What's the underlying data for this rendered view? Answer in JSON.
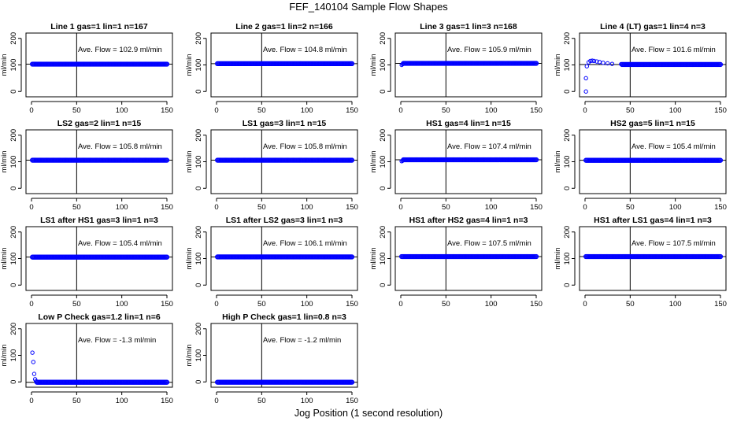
{
  "figure": {
    "title": "FEF_140104  Sample Flow Shapes",
    "xlabel": "Jog Position (1 second resolution)"
  },
  "chart_data": [
    {
      "type": "scatter",
      "title": "Line 1 gas=1 lin=1 n=167",
      "ylabel": "ml/min",
      "annotation": "Ave. Flow =  102.9  ml/min",
      "xlim": [
        0,
        150
      ],
      "ylim": [
        -20,
        220
      ],
      "xticks": [
        0,
        50,
        100,
        150
      ],
      "yticks": [
        0,
        100,
        200
      ],
      "vline_x": 50,
      "hline_y": 102.9,
      "series": {
        "x_start": 1,
        "x_end": 150,
        "level": 102.9,
        "startup": []
      }
    },
    {
      "type": "scatter",
      "title": "Line 2 gas=1 lin=2 n=166",
      "ylabel": "ml/min",
      "annotation": "Ave. Flow =  104.8  ml/min",
      "xlim": [
        0,
        150
      ],
      "ylim": [
        -20,
        220
      ],
      "xticks": [
        0,
        50,
        100,
        150
      ],
      "yticks": [
        0,
        100,
        200
      ],
      "vline_x": 50,
      "hline_y": 104.8,
      "series": {
        "x_start": 1,
        "x_end": 150,
        "level": 104.8,
        "startup": []
      }
    },
    {
      "type": "scatter",
      "title": "Line 3 gas=1 lin=3 n=168",
      "ylabel": "ml/min",
      "annotation": "Ave. Flow =  105.9  ml/min",
      "xlim": [
        0,
        150
      ],
      "ylim": [
        -20,
        220
      ],
      "xticks": [
        0,
        50,
        100,
        150
      ],
      "yticks": [
        0,
        100,
        200
      ],
      "vline_x": 50,
      "hline_y": 105.9,
      "series": {
        "x_start": 1,
        "x_end": 150,
        "level": 105.9,
        "startup": [
          [
            1,
            100
          ],
          [
            2,
            103
          ]
        ]
      }
    },
    {
      "type": "scatter",
      "title": "Line 4 (LT) gas=1 lin=4 n=3",
      "ylabel": "ml/min",
      "annotation": "Ave. Flow =  101.6  ml/min",
      "xlim": [
        0,
        150
      ],
      "ylim": [
        -20,
        220
      ],
      "xticks": [
        0,
        50,
        100,
        150
      ],
      "yticks": [
        0,
        100,
        200
      ],
      "vline_x": 50,
      "hline_y": 101.6,
      "series": {
        "x_start": 1,
        "x_end": 150,
        "level": 101.6,
        "startup": [
          [
            1,
            0
          ],
          [
            1,
            50
          ],
          [
            2,
            95
          ],
          [
            4,
            110
          ],
          [
            6,
            115
          ],
          [
            8,
            116
          ],
          [
            10,
            115
          ],
          [
            13,
            113
          ],
          [
            16,
            111
          ],
          [
            20,
            108
          ],
          [
            25,
            106
          ],
          [
            30,
            104
          ],
          [
            40,
            103
          ]
        ]
      }
    },
    {
      "type": "scatter",
      "title": "LS2 gas=2 lin=1 n=15",
      "ylabel": "ml/min",
      "annotation": "Ave. Flow =  105.8  ml/min",
      "xlim": [
        0,
        150
      ],
      "ylim": [
        -20,
        220
      ],
      "xticks": [
        0,
        50,
        100,
        150
      ],
      "yticks": [
        0,
        100,
        200
      ],
      "vline_x": 50,
      "hline_y": 105.8,
      "series": {
        "x_start": 1,
        "x_end": 150,
        "level": 105.8,
        "startup": []
      }
    },
    {
      "type": "scatter",
      "title": "LS1 gas=3 lin=1 n=15",
      "ylabel": "ml/min",
      "annotation": "Ave. Flow =  105.8  ml/min",
      "xlim": [
        0,
        150
      ],
      "ylim": [
        -20,
        220
      ],
      "xticks": [
        0,
        50,
        100,
        150
      ],
      "yticks": [
        0,
        100,
        200
      ],
      "vline_x": 50,
      "hline_y": 105.8,
      "series": {
        "x_start": 1,
        "x_end": 150,
        "level": 105.8,
        "startup": []
      }
    },
    {
      "type": "scatter",
      "title": "HS1 gas=4 lin=1 n=15",
      "ylabel": "ml/min",
      "annotation": "Ave. Flow =  107.4  ml/min",
      "xlim": [
        0,
        150
      ],
      "ylim": [
        -20,
        220
      ],
      "xticks": [
        0,
        50,
        100,
        150
      ],
      "yticks": [
        0,
        100,
        200
      ],
      "vline_x": 50,
      "hline_y": 107.4,
      "series": {
        "x_start": 1,
        "x_end": 150,
        "level": 107.4,
        "startup": [
          [
            1,
            102
          ],
          [
            2,
            104
          ]
        ]
      }
    },
    {
      "type": "scatter",
      "title": "HS2 gas=5 lin=1 n=15",
      "ylabel": "ml/min",
      "annotation": "Ave. Flow =  105.4  ml/min",
      "xlim": [
        0,
        150
      ],
      "ylim": [
        -20,
        220
      ],
      "xticks": [
        0,
        50,
        100,
        150
      ],
      "yticks": [
        0,
        100,
        200
      ],
      "vline_x": 50,
      "hline_y": 105.4,
      "series": {
        "x_start": 1,
        "x_end": 150,
        "level": 105.4,
        "startup": []
      }
    },
    {
      "type": "scatter",
      "title": "LS1 after HS1 gas=3 lin=1 n=3",
      "ylabel": "ml/min",
      "annotation": "Ave. Flow =  105.4  ml/min",
      "xlim": [
        0,
        150
      ],
      "ylim": [
        -20,
        220
      ],
      "xticks": [
        0,
        50,
        100,
        150
      ],
      "yticks": [
        0,
        100,
        200
      ],
      "vline_x": 50,
      "hline_y": 105.4,
      "series": {
        "x_start": 1,
        "x_end": 150,
        "level": 105.4,
        "startup": []
      }
    },
    {
      "type": "scatter",
      "title": "LS1 after LS2 gas=3 lin=1 n=3",
      "ylabel": "ml/min",
      "annotation": "Ave. Flow =  106.1  ml/min",
      "xlim": [
        0,
        150
      ],
      "ylim": [
        -20,
        220
      ],
      "xticks": [
        0,
        50,
        100,
        150
      ],
      "yticks": [
        0,
        100,
        200
      ],
      "vline_x": 50,
      "hline_y": 106.1,
      "series": {
        "x_start": 1,
        "x_end": 150,
        "level": 106.1,
        "startup": []
      }
    },
    {
      "type": "scatter",
      "title": "HS1 after HS2 gas=4 lin=1 n=3",
      "ylabel": "ml/min",
      "annotation": "Ave. Flow =  107.5  ml/min",
      "xlim": [
        0,
        150
      ],
      "ylim": [
        -20,
        220
      ],
      "xticks": [
        0,
        50,
        100,
        150
      ],
      "yticks": [
        0,
        100,
        200
      ],
      "vline_x": 50,
      "hline_y": 107.5,
      "series": {
        "x_start": 1,
        "x_end": 150,
        "level": 107.5,
        "startup": []
      }
    },
    {
      "type": "scatter",
      "title": "HS1 after LS1 gas=4 lin=1 n=3",
      "ylabel": "ml/min",
      "annotation": "Ave. Flow =  107.5  ml/min",
      "xlim": [
        0,
        150
      ],
      "ylim": [
        -20,
        220
      ],
      "xticks": [
        0,
        50,
        100,
        150
      ],
      "yticks": [
        0,
        100,
        200
      ],
      "vline_x": 50,
      "hline_y": 107.5,
      "series": {
        "x_start": 1,
        "x_end": 150,
        "level": 107.5,
        "startup": []
      }
    },
    {
      "type": "scatter",
      "title": "Low P Check gas=1.2 lin=1 n=6",
      "ylabel": "ml/min",
      "annotation": "Ave. Flow =  -1.3  ml/min",
      "xlim": [
        0,
        150
      ],
      "ylim": [
        -20,
        220
      ],
      "xticks": [
        0,
        50,
        100,
        150
      ],
      "yticks": [
        0,
        100,
        200
      ],
      "vline_x": 50,
      "hline_y": -1.3,
      "series": {
        "x_start": 1,
        "x_end": 150,
        "level": -1.3,
        "startup": [
          [
            1,
            110
          ],
          [
            2,
            75
          ],
          [
            3,
            30
          ],
          [
            4,
            10
          ],
          [
            5,
            3
          ]
        ]
      }
    },
    {
      "type": "scatter",
      "title": "High P Check gas=1 lin=0.8 n=3",
      "ylabel": "ml/min",
      "annotation": "Ave. Flow =  -1.2  ml/min",
      "xlim": [
        0,
        150
      ],
      "ylim": [
        -20,
        220
      ],
      "xticks": [
        0,
        50,
        100,
        150
      ],
      "yticks": [
        0,
        100,
        200
      ],
      "vline_x": 50,
      "hline_y": -1.2,
      "series": {
        "x_start": 1,
        "x_end": 150,
        "level": -1.2,
        "startup": []
      }
    }
  ],
  "colors": {
    "points": "#0000ff",
    "axes": "#000000",
    "background": "#ffffff"
  }
}
